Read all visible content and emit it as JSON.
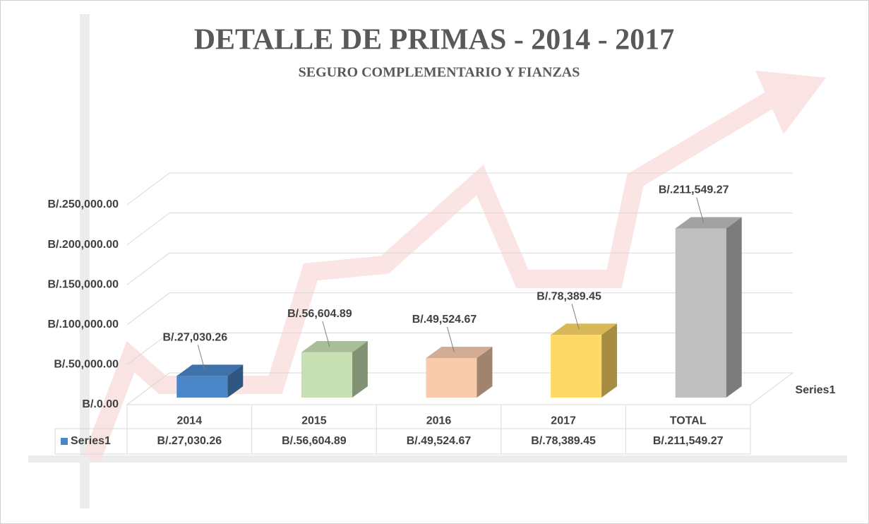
{
  "chart_data": {
    "type": "bar3d",
    "title": "DETALLE DE PRIMAS - 2014 - 2017",
    "subtitle": "SEGURO COMPLEMENTARIO Y FIANZAS",
    "categories": [
      "2014",
      "2015",
      "2016",
      "2017",
      "TOTAL"
    ],
    "series": [
      {
        "name": "Series1",
        "color": "#4a86c8",
        "values": [
          27030.26,
          56604.89,
          49524.67,
          78389.45,
          211549.27
        ],
        "value_labels": [
          "B/.27,030.26",
          "B/.56,604.89",
          "B/.49,524.67",
          "B/.78,389.45",
          "B/.211,549.27"
        ],
        "point_colors": [
          "#4a86c8",
          "#c6e0b4",
          "#f8cbad",
          "#ffd966",
          "#bfbfbf"
        ]
      }
    ],
    "ylim": [
      0,
      250000
    ],
    "yticks": [
      {
        "value": 0,
        "label": "B/.0.00"
      },
      {
        "value": 50000,
        "label": "B/.50,000.00"
      },
      {
        "value": 100000,
        "label": "B/.100,000.00"
      },
      {
        "value": 150000,
        "label": "B/.150,000.00"
      },
      {
        "value": 200000,
        "label": "B/.200,000.00"
      },
      {
        "value": 250000,
        "label": "B/.250,000.00"
      }
    ],
    "grid": true,
    "data_table": true
  }
}
